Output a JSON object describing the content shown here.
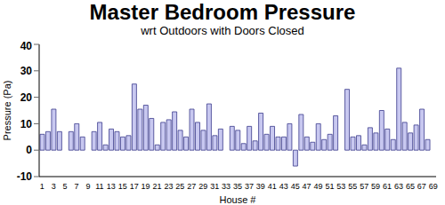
{
  "chart_data": {
    "type": "bar",
    "title": "Master Bedroom Pressure",
    "subtitle": "wrt Outdoors with Doors Closed",
    "x_label": "House #",
    "y_label": "Pressure (Pa)",
    "categories": [
      "1",
      null,
      "3",
      null,
      "5",
      null,
      "7",
      null,
      "9",
      null,
      "11",
      null,
      "13",
      null,
      "15",
      null,
      "17",
      null,
      "19",
      null,
      "21",
      null,
      "23",
      null,
      "25",
      null,
      "27",
      null,
      "29",
      null,
      "31",
      null,
      "33",
      null,
      "35",
      null,
      "37",
      null,
      "39",
      null,
      "41",
      null,
      "43",
      null,
      "45",
      null,
      "47",
      null,
      "49",
      null,
      "51",
      null,
      "53",
      null,
      "55",
      null,
      "57",
      null,
      "59",
      null,
      "61",
      null,
      "63",
      null,
      "65",
      null,
      "67",
      null,
      "69"
    ],
    "values": [
      6,
      7,
      15.5,
      7,
      0,
      7,
      10,
      5,
      0,
      7,
      10.5,
      2,
      8,
      7,
      5,
      5.5,
      25,
      15.5,
      17,
      12,
      2,
      10.5,
      11.5,
      14.5,
      7.5,
      5,
      15.5,
      10.5,
      7.5,
      17.5,
      5.5,
      8,
      0,
      9,
      7.5,
      2.5,
      9,
      3.5,
      14,
      6,
      9,
      5,
      5,
      10,
      -6,
      13.5,
      5,
      3,
      10,
      4,
      6,
      13,
      0,
      23,
      5,
      5.5,
      2,
      8.5,
      6.5,
      15,
      8,
      4,
      31,
      10.5,
      6.5,
      9.5,
      15.5,
      4,
      0
    ],
    "color": "#c8c8f0",
    "ylim": [
      -10,
      40
    ],
    "yticks": [
      -10,
      0,
      10,
      20,
      30,
      40
    ],
    "grid": false
  }
}
